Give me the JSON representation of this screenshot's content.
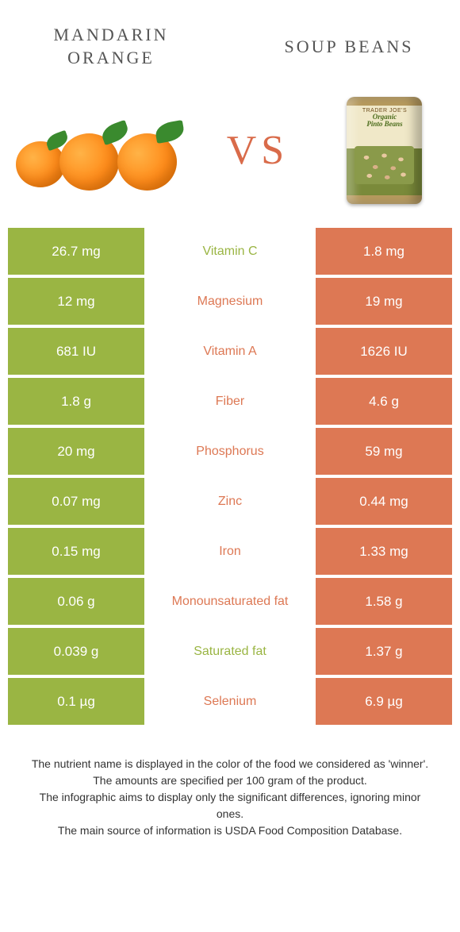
{
  "header": {
    "left_title": "MANDARIN ORANGE",
    "right_title": "SOUP BEANS",
    "vs": "VS"
  },
  "can": {
    "brand": "TRADER JOE'S",
    "product_line1": "Organic",
    "product_line2": "Pinto Beans"
  },
  "colors": {
    "left": "#9ab543",
    "right": "#dd7854",
    "vs": "#d96b4a"
  },
  "rows": [
    {
      "left": "26.7 mg",
      "label": "Vitamin C",
      "right": "1.8 mg",
      "winner": "left"
    },
    {
      "left": "12 mg",
      "label": "Magnesium",
      "right": "19 mg",
      "winner": "right"
    },
    {
      "left": "681 IU",
      "label": "Vitamin A",
      "right": "1626 IU",
      "winner": "right"
    },
    {
      "left": "1.8 g",
      "label": "Fiber",
      "right": "4.6 g",
      "winner": "right"
    },
    {
      "left": "20 mg",
      "label": "Phosphorus",
      "right": "59 mg",
      "winner": "right"
    },
    {
      "left": "0.07 mg",
      "label": "Zinc",
      "right": "0.44 mg",
      "winner": "right"
    },
    {
      "left": "0.15 mg",
      "label": "Iron",
      "right": "1.33 mg",
      "winner": "right"
    },
    {
      "left": "0.06 g",
      "label": "Monounsaturated fat",
      "right": "1.58 g",
      "winner": "right"
    },
    {
      "left": "0.039 g",
      "label": "Saturated fat",
      "right": "1.37 g",
      "winner": "left"
    },
    {
      "left": "0.1 µg",
      "label": "Selenium",
      "right": "6.9 µg",
      "winner": "right"
    }
  ],
  "footer": {
    "line1": "The nutrient name is displayed in the color of the food we considered as 'winner'.",
    "line2": "The amounts are specified per 100 gram of the product.",
    "line3": "The infographic aims to display only the significant differences, ignoring minor ones.",
    "line4": "The main source of information is USDA Food Composition Database."
  }
}
